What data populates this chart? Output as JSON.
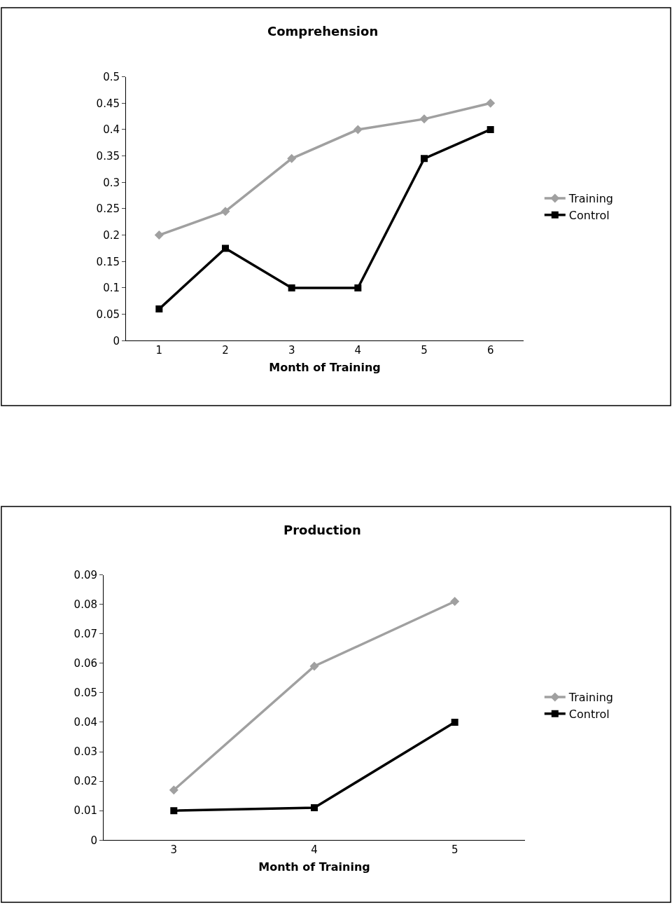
{
  "chart_data": [
    {
      "type": "line",
      "title": "Comprehension",
      "xlabel": "Month of Training",
      "categories": [
        "1",
        "2",
        "3",
        "4",
        "5",
        "6"
      ],
      "series": [
        {
          "name": "Training",
          "color": "#a0a0a0",
          "marker": "diamond",
          "values": [
            0.2,
            0.245,
            0.345,
            0.4,
            0.42,
            0.45
          ]
        },
        {
          "name": "Control",
          "color": "#000000",
          "marker": "square",
          "values": [
            0.06,
            0.175,
            0.1,
            0.1,
            0.345,
            0.4
          ]
        }
      ],
      "ylim": [
        0,
        0.5
      ],
      "yticks": [
        0,
        0.05,
        0.1,
        0.15,
        0.2,
        0.25,
        0.3,
        0.35,
        0.4,
        0.45,
        0.5
      ],
      "legend": "right",
      "grid": false
    },
    {
      "type": "line",
      "title": "Production",
      "xlabel": "Month of Training",
      "categories": [
        "3",
        "4",
        "5"
      ],
      "series": [
        {
          "name": "Training",
          "color": "#a0a0a0",
          "marker": "diamond",
          "values": [
            0.017,
            0.059,
            0.081
          ]
        },
        {
          "name": "Control",
          "color": "#000000",
          "marker": "square",
          "values": [
            0.01,
            0.011,
            0.04
          ]
        }
      ],
      "ylim": [
        0,
        0.09
      ],
      "yticks": [
        0,
        0.01,
        0.02,
        0.03,
        0.04,
        0.05,
        0.06,
        0.07,
        0.08,
        0.09
      ],
      "legend": "right",
      "grid": false
    }
  ]
}
